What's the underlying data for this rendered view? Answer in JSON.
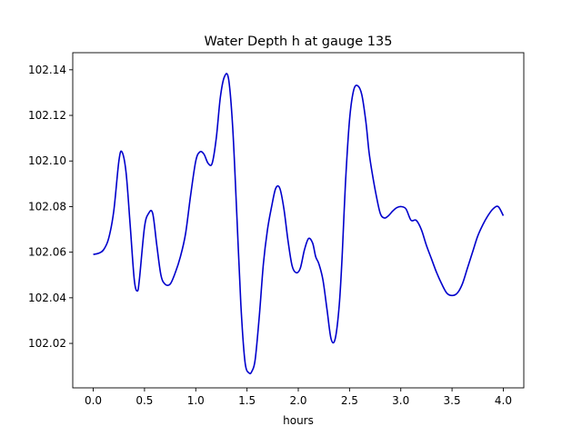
{
  "chart_data": {
    "type": "line",
    "title": "Water Depth h at gauge 135",
    "xlabel": "hours",
    "ylabel": "",
    "xlim": [
      -0.2,
      4.2
    ],
    "ylim": [
      102.0005,
      102.1475
    ],
    "xticks": [
      0.0,
      0.5,
      1.0,
      1.5,
      2.0,
      2.5,
      3.0,
      3.5,
      4.0
    ],
    "xtick_labels": [
      "0.0",
      "0.5",
      "1.0",
      "1.5",
      "2.0",
      "2.5",
      "3.0",
      "3.5",
      "4.0"
    ],
    "yticks": [
      102.02,
      102.04,
      102.06,
      102.08,
      102.1,
      102.12,
      102.14
    ],
    "ytick_labels": [
      "102.02",
      "102.04",
      "102.06",
      "102.08",
      "102.10",
      "102.12",
      "102.14"
    ],
    "grid": false,
    "series": [
      {
        "color": "#0000cc",
        "x": [
          0.0,
          0.05,
          0.1,
          0.15,
          0.2,
          0.25,
          0.28,
          0.32,
          0.36,
          0.4,
          0.43,
          0.45,
          0.5,
          0.54,
          0.58,
          0.62,
          0.66,
          0.7,
          0.75,
          0.8,
          0.85,
          0.9,
          0.95,
          1.0,
          1.04,
          1.08,
          1.12,
          1.16,
          1.2,
          1.24,
          1.28,
          1.32,
          1.36,
          1.4,
          1.44,
          1.48,
          1.52,
          1.55,
          1.58,
          1.62,
          1.66,
          1.7,
          1.74,
          1.78,
          1.82,
          1.86,
          1.9,
          1.94,
          1.98,
          2.02,
          2.06,
          2.1,
          2.14,
          2.17,
          2.2,
          2.24,
          2.28,
          2.32,
          2.36,
          2.4,
          2.43,
          2.46,
          2.5,
          2.54,
          2.58,
          2.62,
          2.66,
          2.69,
          2.72,
          2.76,
          2.8,
          2.84,
          2.88,
          2.92,
          2.96,
          3.0,
          3.05,
          3.1,
          3.15,
          3.2,
          3.25,
          3.3,
          3.35,
          3.4,
          3.45,
          3.5,
          3.55,
          3.6,
          3.65,
          3.7,
          3.75,
          3.8,
          3.85,
          3.9,
          3.95,
          4.0
        ],
        "y": [
          102.059,
          102.0595,
          102.061,
          102.066,
          102.078,
          102.1,
          102.104,
          102.095,
          102.072,
          102.048,
          102.043,
          102.048,
          102.071,
          102.077,
          102.077,
          102.063,
          102.05,
          102.046,
          102.046,
          102.051,
          102.058,
          102.068,
          102.085,
          102.1,
          102.104,
          102.103,
          102.099,
          102.099,
          102.11,
          102.128,
          102.137,
          102.136,
          102.115,
          102.077,
          102.037,
          102.012,
          102.007,
          102.008,
          102.013,
          102.032,
          102.055,
          102.07,
          102.08,
          102.088,
          102.088,
          102.079,
          102.065,
          102.054,
          102.051,
          102.053,
          102.061,
          102.066,
          102.064,
          102.058,
          102.055,
          102.048,
          102.035,
          102.022,
          102.022,
          102.037,
          102.06,
          102.09,
          102.118,
          102.131,
          102.133,
          102.129,
          102.117,
          102.104,
          102.095,
          102.085,
          102.077,
          102.075,
          102.076,
          102.078,
          102.0795,
          102.08,
          102.079,
          102.074,
          102.074,
          102.07,
          102.063,
          102.057,
          102.051,
          102.046,
          102.042,
          102.041,
          102.042,
          102.046,
          102.053,
          102.06,
          102.067,
          102.072,
          102.076,
          102.079,
          102.08,
          102.076
        ]
      }
    ]
  }
}
